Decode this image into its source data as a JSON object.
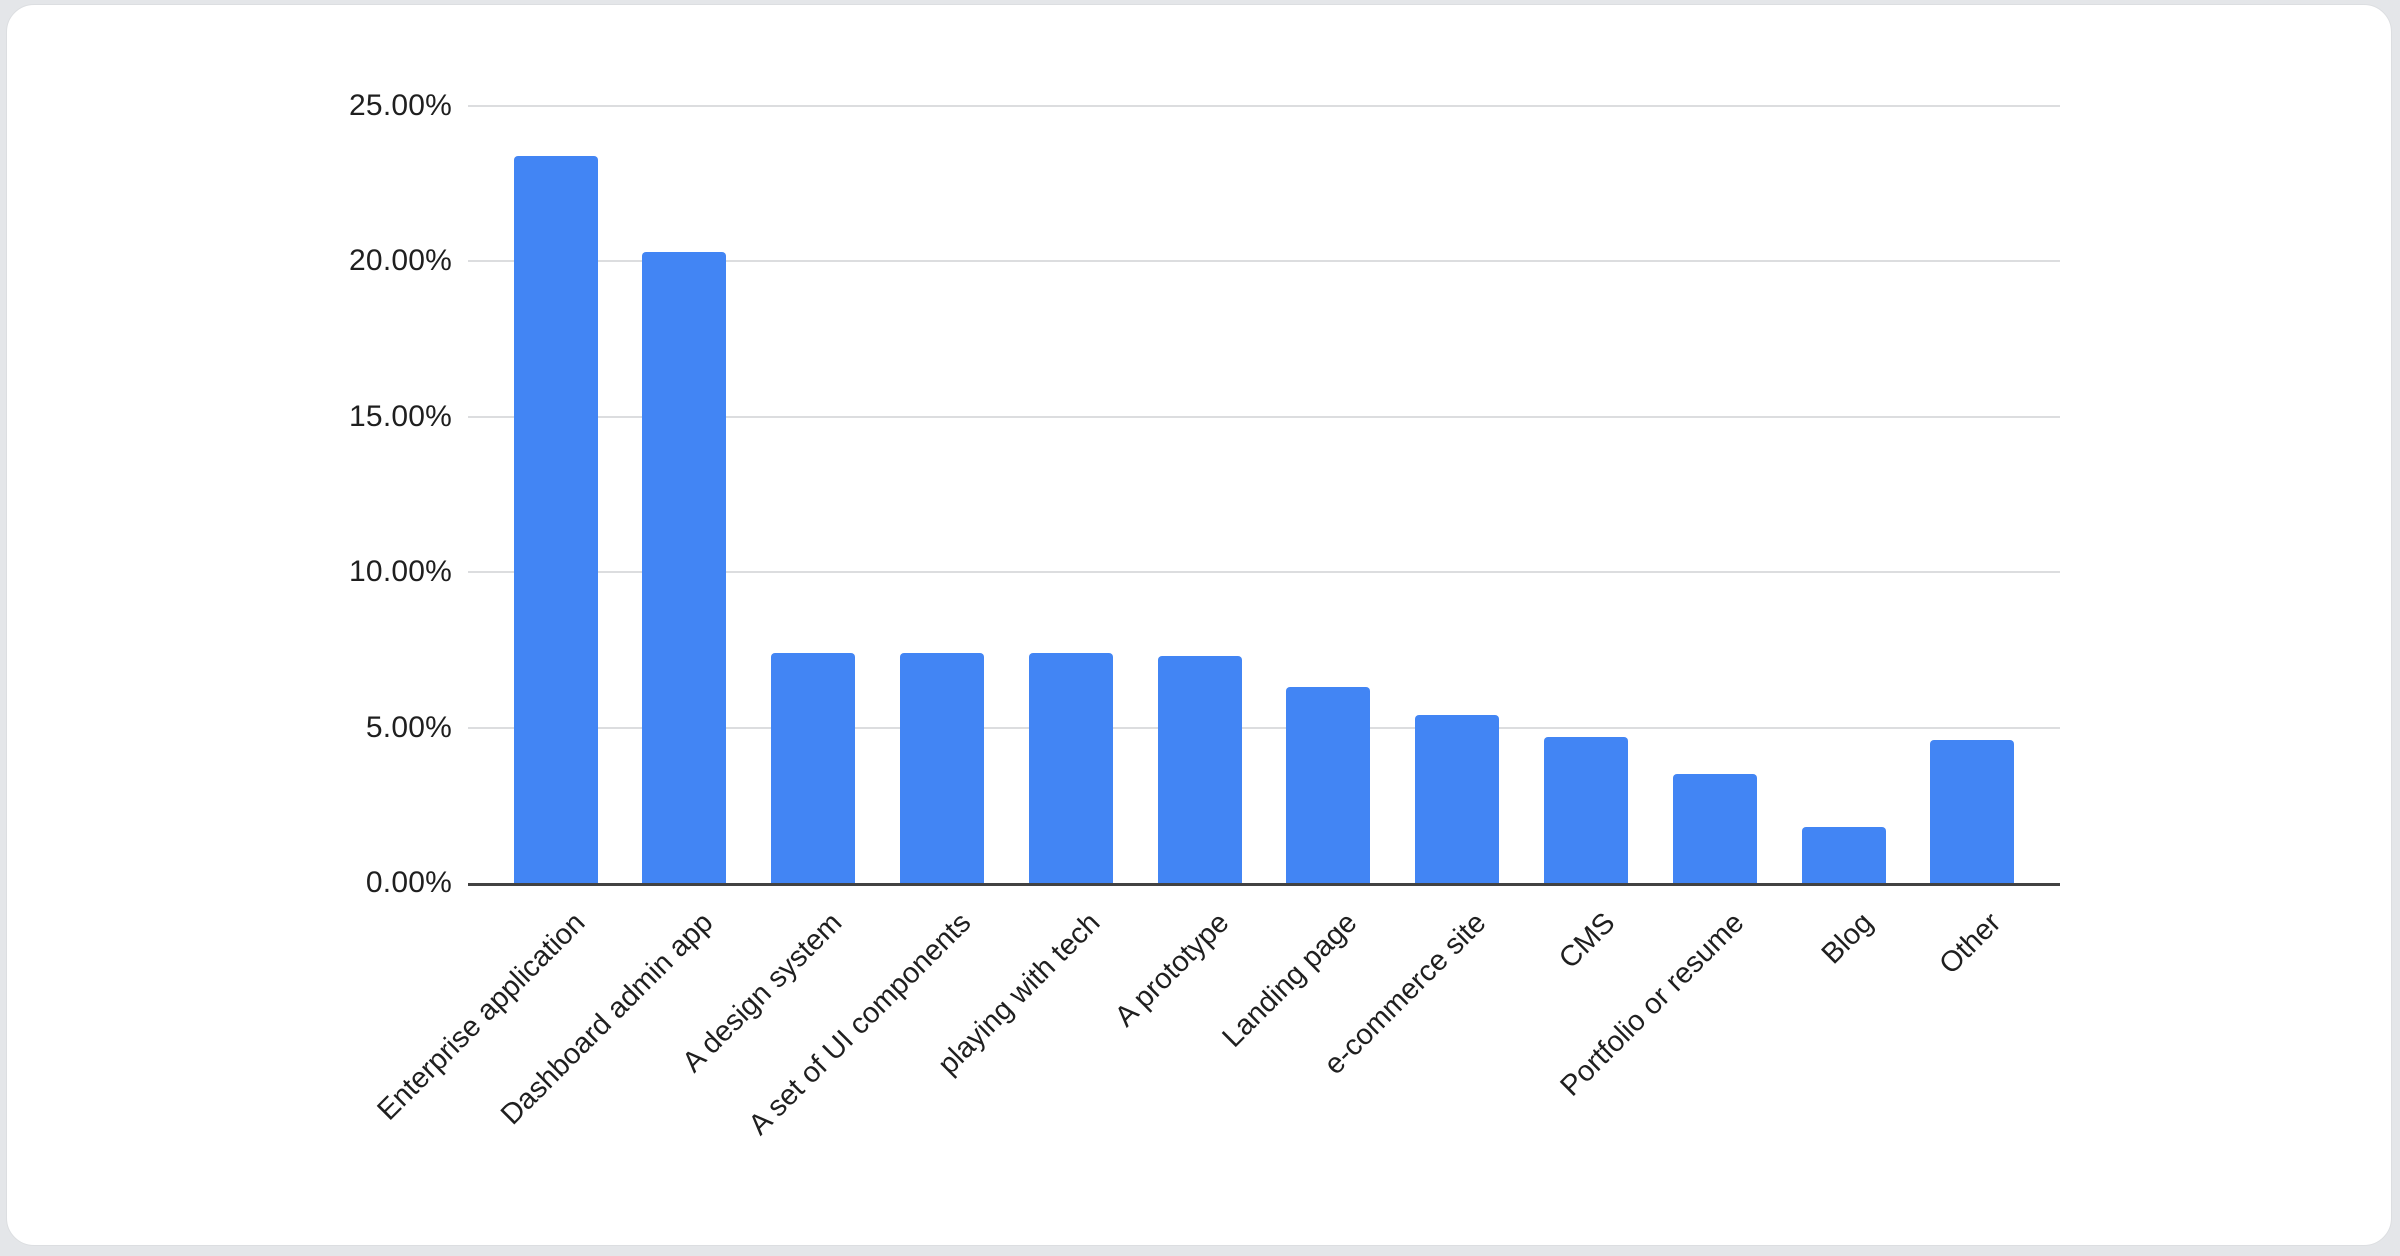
{
  "chart_data": {
    "type": "bar",
    "title": "",
    "xlabel": "",
    "ylabel": "",
    "categories": [
      "Enterprise application",
      "Dashboard admin app",
      "A design system",
      "A set of UI components",
      "playing with tech",
      "A prototype",
      "Landing page",
      "e-commerce site",
      "CMS",
      "Portfolio or resume",
      "Blog",
      "Other"
    ],
    "values": [
      23.4,
      20.3,
      7.4,
      7.4,
      7.4,
      7.3,
      6.3,
      5.4,
      4.7,
      3.5,
      1.8,
      4.6
    ],
    "value_unit": "percent",
    "y_ticks": [
      "0.00%",
      "5.00%",
      "10.00%",
      "15.00%",
      "20.00%",
      "25.00%"
    ],
    "y_tick_values": [
      0,
      5,
      10,
      15,
      20,
      25
    ],
    "ylim": [
      0,
      25
    ],
    "grid": true,
    "legend_position": "none",
    "bar_color": "#4285f4",
    "gridline_color": "#dcdddf",
    "baseline_color": "#424242",
    "label_color": "#1f1f1f",
    "x_label_rotation_deg": -45
  }
}
